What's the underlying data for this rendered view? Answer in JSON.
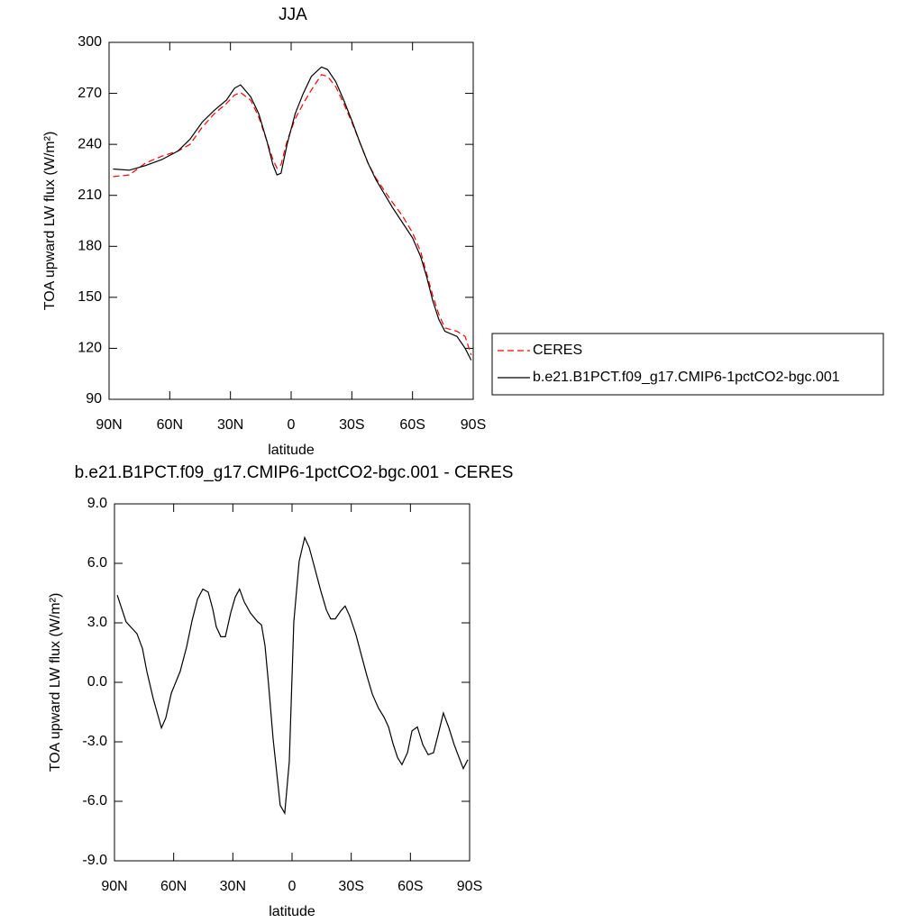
{
  "chart_data": [
    {
      "type": "line",
      "title": "JJA",
      "x_label": "latitude",
      "y_label": "TOA upward LW flux (W/m²)",
      "x": [
        88,
        80,
        72,
        64,
        56,
        50,
        44,
        38,
        32,
        28,
        25,
        20,
        16,
        12,
        9,
        7,
        5,
        2,
        -2,
        -6,
        -10,
        -15,
        -18,
        -22,
        -26,
        -30,
        -34,
        -38,
        -42,
        -46,
        -50,
        -55,
        -60,
        -64,
        -67,
        -70,
        -73,
        -76,
        -82,
        -86,
        -89
      ],
      "xlim": [
        90,
        -90
      ],
      "xticks": [
        {
          "value": 90,
          "label": "90N"
        },
        {
          "value": 60,
          "label": "60N"
        },
        {
          "value": 30,
          "label": "30N"
        },
        0,
        {
          "value": -30,
          "label": "30S"
        },
        {
          "value": -60,
          "label": "60S"
        },
        {
          "value": -90,
          "label": "90S"
        }
      ],
      "ylim": [
        90,
        300
      ],
      "yticks": [
        90,
        120,
        150,
        180,
        210,
        240,
        270,
        300
      ],
      "legend": "right",
      "series": [
        {
          "name": "CERES",
          "color": "#ff0000",
          "line_style": "dashed",
          "values": [
            221,
            222,
            229,
            233,
            236,
            240,
            250,
            258,
            264,
            269,
            270.5,
            266,
            256,
            242,
            231,
            226,
            228,
            242,
            255,
            264,
            272,
            281,
            280,
            274,
            264,
            253,
            241,
            229,
            220,
            213,
            206,
            198,
            188,
            177,
            164,
            151,
            140,
            132,
            130,
            127,
            116
          ]
        },
        {
          "name": "b.e21.B1PCT.f09_g17.CMIP6-1pctCO2-bgc.001",
          "color": "#000000",
          "line_style": "solid",
          "values": [
            225.5,
            224.8,
            227.5,
            231,
            236,
            243,
            253,
            260,
            266,
            273,
            275,
            268,
            258,
            242,
            228,
            222,
            223,
            240,
            258,
            270,
            280,
            285.5,
            284,
            277,
            266,
            254,
            241,
            229,
            219,
            211,
            203,
            194,
            185,
            174,
            162,
            148,
            137,
            130,
            127,
            120,
            113
          ]
        }
      ]
    },
    {
      "type": "line",
      "title": "b.e21.B1PCT.f09_g17.CMIP6-1pctCO2-bgc.001 - CERES",
      "x_label": "latitude",
      "y_label": "TOA upward LW flux (W/m²)",
      "x": [
        88.6,
        84.1,
        80.9,
        78.6,
        75.8,
        73.6,
        70.4,
        66.2,
        64,
        61.2,
        56.7,
        53.4,
        50.7,
        47.9,
        45.2,
        42.5,
        40.2,
        38.4,
        36.1,
        33.8,
        31.1,
        28.8,
        26.6,
        24.2,
        21.1,
        17.4,
        15.5,
        13.7,
        11.9,
        9.6,
        6,
        3.7,
        1.4,
        -0.9,
        -3.6,
        -6.4,
        -8.7,
        -11.4,
        -14.6,
        -17.4,
        -19.6,
        -21.9,
        -24.7,
        -26.9,
        -29.2,
        -32.4,
        -35.2,
        -37.9,
        -40.7,
        -43.8,
        -46.6,
        -48.9,
        -51.2,
        -53.5,
        -55.7,
        -58.5,
        -60.8,
        -63.5,
        -66.3,
        -69,
        -71.7,
        -74,
        -76.7,
        -79.5,
        -82.2,
        -84.1,
        -86.8,
        -89.1
      ],
      "xlim": [
        90,
        -90
      ],
      "xticks": [
        {
          "value": 90,
          "label": "90N"
        },
        {
          "value": 60,
          "label": "60N"
        },
        {
          "value": 30,
          "label": "30N"
        },
        0,
        {
          "value": -30,
          "label": "30S"
        },
        {
          "value": -60,
          "label": "60S"
        },
        {
          "value": -90,
          "label": "90S"
        }
      ],
      "ylim": [
        -9,
        9
      ],
      "yticks": [
        {
          "value": -9,
          "label": "-9.0"
        },
        {
          "value": -6,
          "label": "-6.0"
        },
        {
          "value": -3,
          "label": "-3.0"
        },
        {
          "value": 0,
          "label": "0.0"
        },
        {
          "value": 3,
          "label": "3.0"
        },
        {
          "value": 6,
          "label": "6.0"
        },
        {
          "value": 9,
          "label": "9.0"
        }
      ],
      "series": [
        {
          "color": "#000000",
          "line_style": "solid",
          "values": [
            4.4,
            3.05,
            2.7,
            2.45,
            1.7,
            0.55,
            -0.8,
            -2.3,
            -1.8,
            -0.55,
            0.55,
            1.8,
            3.1,
            4.2,
            4.7,
            4.55,
            3.7,
            2.8,
            2.3,
            2.3,
            3.5,
            4.3,
            4.7,
            4.05,
            3.5,
            3.05,
            2.9,
            1.85,
            -0.1,
            -2.85,
            -6.2,
            -6.6,
            -4,
            3.05,
            6.1,
            7.3,
            6.8,
            5.8,
            4.6,
            3.65,
            3.2,
            3.2,
            3.6,
            3.85,
            3.35,
            2.4,
            1.35,
            0.35,
            -0.6,
            -1.3,
            -1.75,
            -2.25,
            -3.1,
            -3.8,
            -4.15,
            -3.55,
            -2.45,
            -2.25,
            -3.15,
            -3.65,
            -3.55,
            -2.65,
            -1.55,
            -2.3,
            -3.15,
            -3.65,
            -4.35,
            -3.9
          ]
        }
      ]
    }
  ]
}
